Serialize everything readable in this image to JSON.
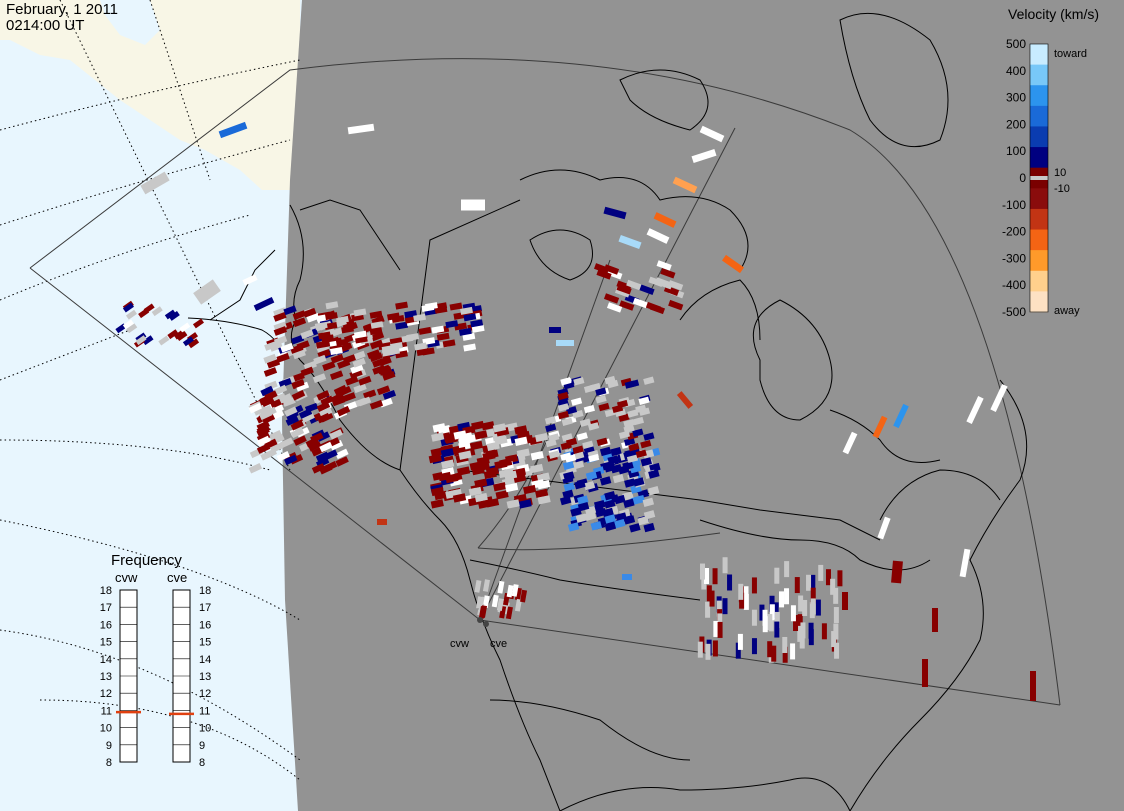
{
  "header": {
    "date": "February, 1 2011",
    "time": "0214:00 UT"
  },
  "velocity_scale": {
    "title": "Velocity (km/s)",
    "ticks": [
      "500",
      "400",
      "300",
      "200",
      "100",
      "0",
      "-100",
      "-200",
      "-300",
      "-400",
      "-500"
    ],
    "side_labels": [
      "toward",
      "10",
      "-10",
      "away"
    ],
    "colors": [
      "#fde1c3",
      "#ffd08c",
      "#ff9a2a",
      "#f46414",
      "#c23414",
      "#8a0c0c",
      "#7a0000",
      "#000080",
      "#0a3cb0",
      "#1a6ad8",
      "#2c94ee",
      "#78c8f8",
      "#c8ecff"
    ]
  },
  "frequency_panel": {
    "title": "Frequency",
    "left_label": "cvw",
    "right_label": "cve",
    "ticks": [
      "18",
      "17",
      "16",
      "15",
      "14",
      "13",
      "12",
      "11",
      "10",
      "9",
      "8"
    ],
    "cvw_value": 10.9,
    "cve_value": 10.8,
    "marker_color": "#e04010"
  },
  "radars": [
    {
      "name": "cvw"
    },
    {
      "name": "cve"
    }
  ],
  "colors": {
    "ocean": "#e8f6fe",
    "land": "#f8f6e6",
    "night": "#939393",
    "gs": "#c8c8c8",
    "away_dark": "#880000",
    "toward_dark": "#000080"
  }
}
